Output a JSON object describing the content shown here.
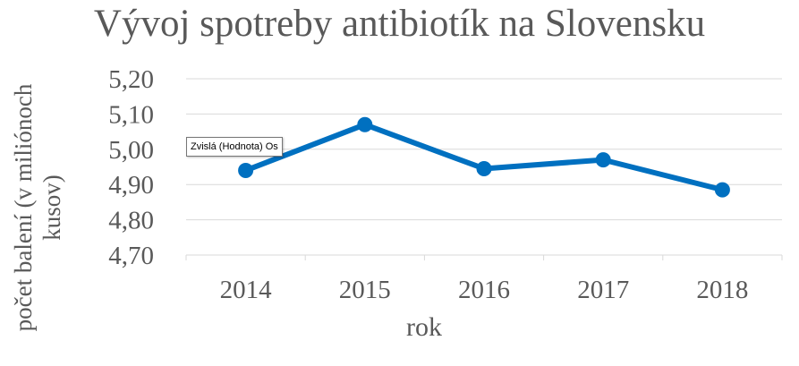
{
  "chart_data": {
    "type": "line",
    "title": "Vývoj spotreby antibiotík na Slovensku",
    "xlabel": "rok",
    "ylabel": "počet balení (v miliónoch kusov)",
    "categories": [
      "2014",
      "2015",
      "2016",
      "2017",
      "2018"
    ],
    "series": [
      {
        "values": [
          4.94,
          5.07,
          4.945,
          4.97,
          4.885
        ],
        "color": "#0070C0"
      }
    ],
    "ylim": [
      4.7,
      5.2
    ],
    "yticks": [
      "4,70",
      "4,80",
      "4,90",
      "5,00",
      "5,10",
      "5,20"
    ],
    "grid": true,
    "markers": true
  },
  "tooltip": {
    "text": "Zvislá (Hodnota) Os"
  },
  "colors": {
    "grid": "#D9D9D9",
    "text": "#595959",
    "series": "#0070C0"
  }
}
